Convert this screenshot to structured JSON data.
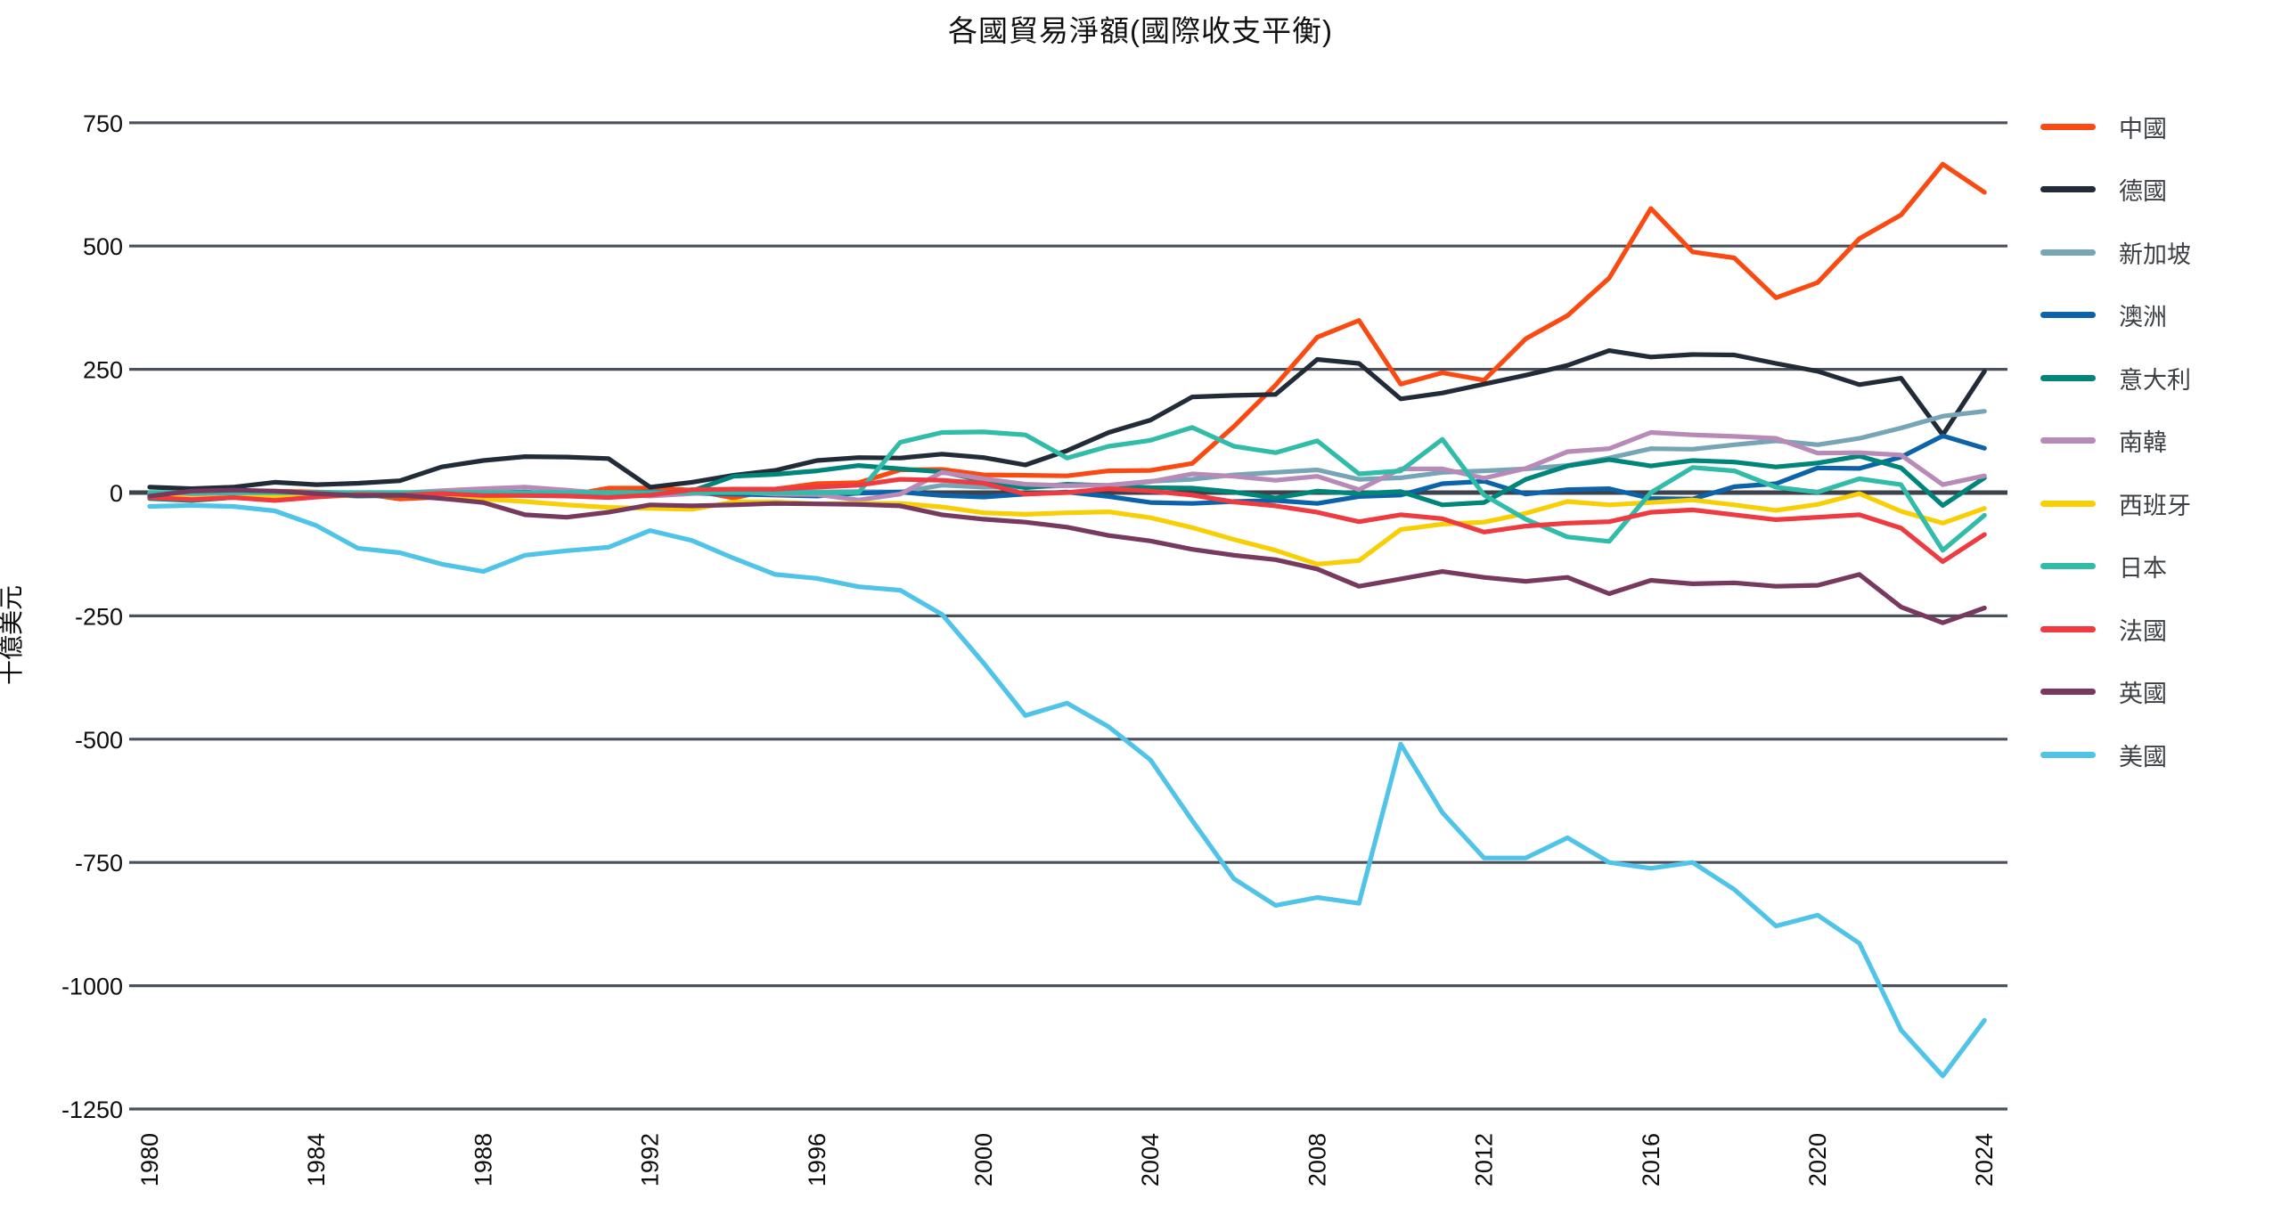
{
  "title": "各國貿易淨額(國際收支平衡)",
  "chart_data": {
    "type": "line",
    "title": "各國貿易淨額(國際收支平衡)",
    "xlabel": "",
    "ylabel": "十億美元",
    "x_range": [
      1980,
      2024
    ],
    "ylim": [
      -1250,
      750
    ],
    "grid": "horizontal",
    "legend_position": "right",
    "xticks": [
      1980,
      1984,
      1988,
      1992,
      1996,
      2000,
      2004,
      2008,
      2012,
      2016,
      2020,
      2024
    ],
    "yticks": [
      750,
      500,
      250,
      0,
      -250,
      -500,
      -750,
      -1000,
      -1250
    ],
    "ytick_labels": [
      "750",
      "500",
      "250",
      "0",
      "-250",
      "-500",
      "-750",
      "-1000",
      "-1250"
    ],
    "unit": "billion USD",
    "years": [
      1980,
      1981,
      1982,
      1983,
      1984,
      1985,
      1986,
      1987,
      1988,
      1989,
      1990,
      1991,
      1992,
      1993,
      1994,
      1995,
      1996,
      1997,
      1998,
      1999,
      2000,
      2001,
      2002,
      2003,
      2004,
      2005,
      2006,
      2007,
      2008,
      2009,
      2010,
      2011,
      2012,
      2013,
      2014,
      2015,
      2016,
      2017,
      2018,
      2019,
      2020,
      2021,
      2022,
      2023,
      2024
    ],
    "series": [
      {
        "id": "china",
        "name": "中國",
        "color": "#fa4a12",
        "values": [
          0,
          0,
          4,
          3,
          1,
          -1,
          -13,
          -9,
          -2,
          -5,
          -6,
          9,
          9,
          5,
          -11,
          7,
          18,
          20,
          46,
          47,
          36,
          35,
          34,
          44,
          45,
          59,
          134,
          218,
          315,
          349,
          220,
          243,
          228,
          312,
          359,
          435,
          576,
          488,
          476,
          395,
          426,
          515,
          563,
          666,
          609
        ]
      },
      {
        "id": "germany",
        "name": "德國",
        "color": "#222b38",
        "values": [
          11,
          8,
          11,
          21,
          16,
          19,
          24,
          52,
          65,
          73,
          72,
          69,
          11,
          21,
          35,
          45,
          65,
          71,
          70,
          78,
          71,
          56,
          85,
          122,
          147,
          194,
          197,
          199,
          270,
          262,
          190,
          202,
          220,
          238,
          258,
          288,
          275,
          280,
          279,
          262,
          246,
          219,
          232,
          117,
          246
        ]
      },
      {
        "id": "singapore",
        "name": "新加坡",
        "color": "#76a5b6",
        "values": [
          0,
          0,
          0,
          0,
          0,
          0,
          0,
          0,
          0,
          0,
          0,
          0,
          0,
          0,
          0,
          1,
          1,
          2,
          1,
          15,
          11,
          11,
          14,
          15,
          23,
          27,
          36,
          41,
          46,
          27,
          30,
          41,
          44,
          48,
          55,
          70,
          89,
          88,
          97,
          105,
          97,
          110,
          131,
          155,
          165
        ]
      },
      {
        "id": "australia",
        "name": "澳洲",
        "color": "#0d63a9",
        "values": [
          -2,
          -1,
          -3,
          -5,
          -1,
          -2,
          -4,
          -3,
          -1,
          1,
          -4,
          -1,
          1,
          -1,
          -3,
          -5,
          -7,
          -1,
          1,
          -6,
          -9,
          -3,
          1,
          -8,
          -20,
          -22,
          -18,
          -16,
          -22,
          -8,
          -5,
          18,
          23,
          -3,
          6,
          8,
          -12,
          -13,
          12,
          18,
          50,
          49,
          72,
          115,
          90
        ]
      },
      {
        "id": "italy",
        "name": "意大利",
        "color": "#00857b",
        "values": [
          -12,
          -16,
          -10,
          -8,
          -4,
          -7,
          -6,
          2,
          0,
          -1,
          -2,
          -1,
          -2,
          3,
          33,
          37,
          44,
          55,
          48,
          42,
          24,
          10,
          17,
          14,
          10,
          9,
          1,
          -11,
          3,
          -2,
          2,
          -25,
          -20,
          27,
          54,
          67,
          54,
          65,
          62,
          52,
          60,
          74,
          50,
          -26,
          30
        ]
      },
      {
        "id": "south-korea",
        "name": "南韓",
        "color": "#b78ab8",
        "values": [
          -4,
          -5,
          -4,
          -3,
          -2,
          -1,
          -1,
          4,
          8,
          11,
          5,
          -2,
          -7,
          -2,
          2,
          -3,
          -4,
          -15,
          -3,
          41,
          28,
          17,
          14,
          15,
          22,
          38,
          33,
          25,
          33,
          6,
          48,
          48,
          29,
          49,
          83,
          89,
          122,
          117,
          114,
          110,
          80,
          81,
          76,
          16,
          34
        ]
      },
      {
        "id": "spain",
        "name": "西班牙",
        "color": "#f8cf05",
        "values": [
          -6,
          -12,
          -10,
          -9,
          -8,
          -5,
          -4,
          -6,
          -13,
          -18,
          -25,
          -30,
          -32,
          -34,
          -19,
          -19,
          -23,
          -22,
          -22,
          -29,
          -41,
          -44,
          -41,
          -39,
          -51,
          -71,
          -95,
          -117,
          -145,
          -138,
          -75,
          -64,
          -60,
          -42,
          -18,
          -25,
          -20,
          -15,
          -25,
          -36,
          -24,
          -2,
          -38,
          -62,
          -32
        ]
      },
      {
        "id": "japan",
        "name": "日本",
        "color": "#30bca8",
        "values": [
          0,
          0,
          0,
          0,
          0,
          0,
          0,
          0,
          0,
          0,
          0,
          0,
          0,
          0,
          0,
          0,
          0,
          0,
          102,
          122,
          123,
          117,
          70,
          94,
          106,
          132,
          94,
          81,
          105,
          38,
          44,
          108,
          -5,
          -54,
          -90,
          -99,
          0,
          51,
          44,
          11,
          1,
          28,
          16,
          -117,
          -46
        ]
      },
      {
        "id": "france",
        "name": "法國",
        "color": "#ee3a41",
        "values": [
          -10,
          -14,
          -10,
          -16,
          -9,
          -4,
          -5,
          -2,
          -6,
          -6,
          -7,
          -10,
          -5,
          6,
          7,
          7,
          11,
          15,
          27,
          25,
          19,
          -3,
          0,
          8,
          3,
          -5,
          -19,
          -27,
          -40,
          -59,
          -45,
          -53,
          -80,
          -68,
          -62,
          -59,
          -40,
          -35,
          -45,
          -55,
          -50,
          -45,
          -72,
          -140,
          -85
        ]
      },
      {
        "id": "uk",
        "name": "英國",
        "color": "#78395f",
        "values": [
          -7,
          3,
          5,
          3,
          -2,
          -6,
          -5,
          -12,
          -20,
          -45,
          -50,
          -40,
          -25,
          -27,
          -25,
          -22,
          -23,
          -24,
          -27,
          -45,
          -54,
          -60,
          -70,
          -87,
          -98,
          -115,
          -127,
          -136,
          -155,
          -190,
          -175,
          -160,
          -172,
          -180,
          -172,
          -205,
          -178,
          -185,
          -183,
          -190,
          -188,
          -166,
          -232,
          -264,
          -234
        ]
      },
      {
        "id": "usa",
        "name": "美國",
        "color": "#4fc3e8",
        "values": [
          -28,
          -26,
          -28,
          -37,
          -67,
          -113,
          -122,
          -145,
          -160,
          -127,
          -118,
          -111,
          -77,
          -97,
          -133,
          -166,
          -174,
          -191,
          -198,
          -247,
          -346,
          -452,
          -427,
          -475,
          -542,
          -665,
          -783,
          -837,
          -821,
          -833,
          -510,
          -649,
          -741,
          -741,
          -700,
          -750,
          -762,
          -750,
          -805,
          -879,
          -857,
          -914,
          -1090,
          -1183,
          -1070
        ]
      }
    ],
    "colors": {
      "grid": "#4b505a",
      "zero_line": "#3d424c",
      "axis_text": "#0d0d0d",
      "legend_text": "#3c4044",
      "background": "#ffffff"
    }
  }
}
